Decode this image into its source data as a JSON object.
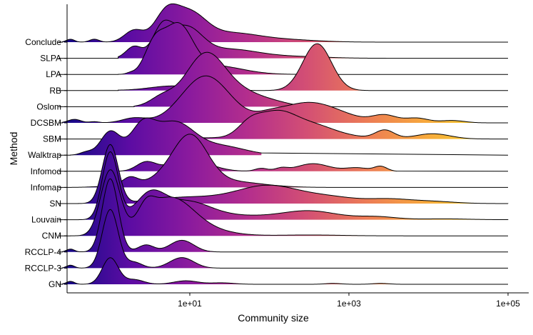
{
  "chart_data": {
    "type": "ridgeline",
    "title": "",
    "xlabel": "Community size",
    "ylabel": "Method",
    "x_scale": "log10",
    "xlim_log10": [
      -0.7,
      5.05
    ],
    "x_ticks": [
      {
        "value": 10,
        "label": "1e+01"
      },
      {
        "value": 1000,
        "label": "1e+03"
      },
      {
        "value": 100000,
        "label": "1e+05"
      }
    ],
    "fill_gradient": {
      "colors": [
        "#1a0a8a",
        "#5c0ca3",
        "#8a1a9e",
        "#b42e8d",
        "#d34f74",
        "#ec7b56",
        "#f7a83c",
        "#f5d030"
      ],
      "log10_from": -0.5,
      "log10_to": 4.7
    },
    "series": [
      {
        "name": "GN",
        "peaks": [
          [
            0,
            0.45,
            0.1
          ],
          [
            0.3,
            0.08,
            0.12
          ],
          [
            0.95,
            0.06,
            0.15
          ],
          [
            1.4,
            0.025,
            0.15
          ],
          [
            2.8,
            0.015,
            0.1
          ],
          [
            3.4,
            0.015,
            0.1
          ],
          [
            -0.5,
            0.05,
            0.05
          ]
        ],
        "cut": [
          -0.6,
          4.0
        ]
      },
      {
        "name": "RCCLP-3",
        "peaks": [
          [
            0,
            1.0,
            0.1
          ],
          [
            0.3,
            0.1,
            0.1
          ],
          [
            0.9,
            0.18,
            0.15
          ],
          [
            -0.5,
            0.05,
            0.05
          ]
        ],
        "cut": [
          -0.6,
          4.0
        ]
      },
      {
        "name": "RCCLP-4",
        "peaks": [
          [
            0,
            1.25,
            0.1
          ],
          [
            0.45,
            0.12,
            0.1
          ],
          [
            0.9,
            0.2,
            0.15
          ],
          [
            -0.5,
            0.05,
            0.05
          ]
        ],
        "cut": [
          -0.6,
          4.0
        ]
      },
      {
        "name": "CNM",
        "peaks": [
          [
            0,
            1.1,
            0.12
          ],
          [
            0.45,
            0.25,
            0.1
          ],
          [
            0.75,
            0.65,
            0.3
          ],
          [
            1.3,
            0.06,
            0.3
          ],
          [
            2.5,
            0.015,
            0.4
          ]
        ],
        "cut": [
          -0.5,
          4.0
        ]
      },
      {
        "name": "Louvain",
        "peaks": [
          [
            0,
            1.15,
            0.1
          ],
          [
            0.5,
            0.4,
            0.18
          ],
          [
            0.95,
            0.3,
            0.3
          ],
          [
            1.6,
            0.06,
            0.4
          ],
          [
            2.5,
            0.15,
            0.35
          ],
          [
            3.35,
            0.05,
            0.25
          ],
          [
            4.2,
            0.015,
            0.3
          ]
        ],
        "cut": [
          -0.4,
          5.0
        ]
      },
      {
        "name": "SN",
        "peaks": [
          [
            0,
            1.0,
            0.1
          ],
          [
            0.9,
            0.1,
            0.4
          ],
          [
            1.6,
            0.07,
            0.35
          ],
          [
            2.0,
            0.25,
            0.35
          ],
          [
            2.7,
            0.12,
            0.4
          ],
          [
            3.5,
            0.06,
            0.25
          ],
          [
            4.0,
            0.04,
            0.3
          ]
        ],
        "cut": [
          -0.4,
          5.0
        ]
      },
      {
        "name": "Infomap",
        "peaks": [
          [
            0,
            0.02,
            0.2
          ],
          [
            0.25,
            0.15,
            0.1
          ],
          [
            0.6,
            0.1,
            0.2
          ],
          [
            1.0,
            0.85,
            0.22
          ],
          [
            1.5,
            0.1,
            0.4
          ]
        ],
        "cut": [
          -0.5,
          4.0
        ]
      },
      {
        "name": "Infomod",
        "peaks": [
          [
            0.45,
            0.15,
            0.12
          ],
          [
            1.0,
            0.2,
            0.25
          ],
          [
            1.9,
            0.05,
            0.08
          ],
          [
            2.15,
            0.05,
            0.08
          ],
          [
            2.55,
            0.13,
            0.2
          ],
          [
            3.1,
            0.06,
            0.15
          ],
          [
            3.4,
            0.08,
            0.08
          ]
        ],
        "cut": [
          -0.5,
          3.6
        ]
      },
      {
        "name": "Walktrap",
        "peaks": [
          [
            0.0,
            0.4,
            0.12
          ],
          [
            0.4,
            0.45,
            0.15
          ],
          [
            0.8,
            0.55,
            0.25
          ],
          [
            1.4,
            0.15,
            0.3
          ],
          [
            -0.3,
            0.05,
            0.08
          ]
        ],
        "cut": [
          -0.5,
          1.9
        ]
      },
      {
        "name": "SBM",
        "peaks": [
          [
            1.2,
            0.02,
            0.3
          ],
          [
            1.75,
            0.2,
            0.15
          ],
          [
            2.1,
            0.45,
            0.25
          ],
          [
            2.6,
            0.2,
            0.25
          ],
          [
            3.05,
            0.03,
            0.2
          ],
          [
            3.45,
            0.15,
            0.12
          ],
          [
            4.05,
            0.09,
            0.22
          ]
        ],
        "cut": [
          -0.6,
          5.0
        ]
      },
      {
        "name": "DCSBM",
        "peaks": [
          [
            -0.45,
            0.06,
            0.08
          ],
          [
            -0.2,
            0.02,
            0.06
          ],
          [
            0.3,
            0.08,
            0.15
          ],
          [
            1.2,
            0.8,
            0.3
          ],
          [
            2.0,
            0.05,
            0.15
          ],
          [
            2.5,
            0.35,
            0.4
          ],
          [
            3.45,
            0.12,
            0.15
          ],
          [
            3.85,
            0.08,
            0.15
          ],
          [
            4.3,
            0.04,
            0.15
          ]
        ],
        "cut": [
          -0.6,
          5.0
        ]
      },
      {
        "name": "Oslom",
        "peaks": [
          [
            0.65,
            0.15,
            0.15
          ],
          [
            1.2,
            0.9,
            0.25
          ],
          [
            1.7,
            0.2,
            0.25
          ],
          [
            2.1,
            0.05,
            0.2
          ]
        ],
        "cut": [
          0.3,
          5.0
        ]
      },
      {
        "name": "RB",
        "peaks": [
          [
            -0.4,
            0.08,
            0.2
          ],
          [
            0.8,
            0.08,
            0.3
          ],
          [
            1.4,
            0.05,
            0.15
          ],
          [
            2.6,
            0.8,
            0.18
          ]
        ],
        "cut": [
          0.1,
          5.0
        ]
      },
      {
        "name": "LPA",
        "peaks": [
          [
            0.25,
            0.02,
            0.05
          ],
          [
            0.55,
            0.45,
            0.12
          ],
          [
            0.85,
            0.8,
            0.18
          ],
          [
            1.3,
            0.15,
            0.35
          ]
        ],
        "cut": [
          0.1,
          5.0
        ]
      },
      {
        "name": "SLPA",
        "peaks": [
          [
            0.3,
            0.2,
            0.1
          ],
          [
            0.65,
            0.45,
            0.12
          ],
          [
            0.95,
            0.5,
            0.2
          ],
          [
            1.5,
            0.15,
            0.35
          ],
          [
            2.3,
            0.03,
            0.4
          ]
        ],
        "cut": [
          0.1,
          5.0
        ]
      },
      {
        "name": "Conclude",
        "peaks": [
          [
            -0.5,
            0.05,
            0.05
          ],
          [
            -0.2,
            0.05,
            0.06
          ],
          [
            0.3,
            0.2,
            0.12
          ],
          [
            0.7,
            0.45,
            0.15
          ],
          [
            1.0,
            0.45,
            0.2
          ],
          [
            1.5,
            0.15,
            0.35
          ],
          [
            2.2,
            0.04,
            0.4
          ]
        ],
        "cut": [
          -0.6,
          5.0
        ]
      }
    ]
  }
}
